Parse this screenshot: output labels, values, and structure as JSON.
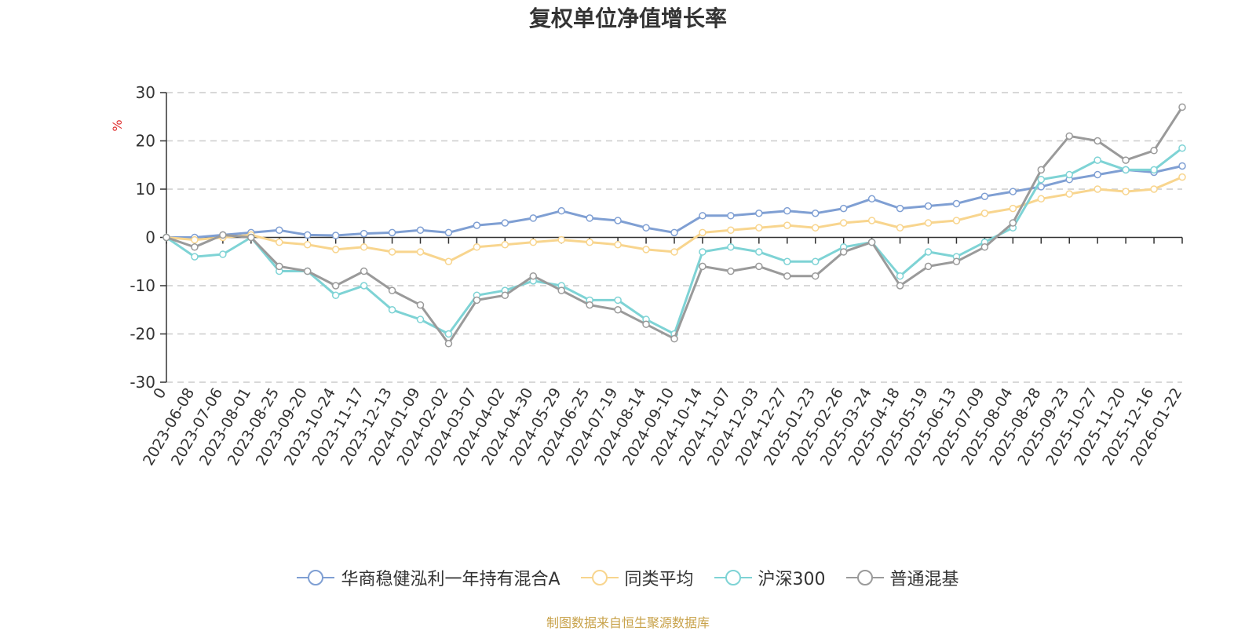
{
  "chart_data": {
    "type": "line",
    "title": "复权单位净值增长率",
    "ylabel": "%",
    "ylim": [
      -30,
      30
    ],
    "yticks": [
      30,
      20,
      10,
      0,
      -10,
      -20,
      -30
    ],
    "grid": true,
    "legend_position": "bottom",
    "source": "制图数据来自恒生聚源数据库",
    "x": [
      "0",
      "2023-06-08",
      "2023-07-06",
      "2023-08-01",
      "2023-08-25",
      "2023-09-20",
      "2023-10-24",
      "2023-11-17",
      "2023-12-13",
      "2024-01-09",
      "2024-02-02",
      "2024-03-07",
      "2024-04-02",
      "2024-04-30",
      "2024-05-29",
      "2024-06-25",
      "2024-07-19",
      "2024-08-14",
      "2024-09-10",
      "2024-10-14",
      "2024-11-07",
      "2024-12-03",
      "2024-12-27",
      "2025-01-23",
      "2025-02-26",
      "2025-03-24",
      "2025-04-18",
      "2025-05-19",
      "2025-06-13",
      "2025-07-09",
      "2025-08-04",
      "2025-08-28",
      "2025-09-23",
      "2025-10-27",
      "2025-11-20",
      "2025-12-16",
      "2026-01-22"
    ],
    "series": [
      {
        "name": "华商稳健泓利一年持有混合A",
        "color": "#7f9fd3",
        "values": [
          0,
          0,
          0.5,
          1,
          1.5,
          0.5,
          0.4,
          0.8,
          1,
          1.5,
          1,
          2.5,
          3,
          4,
          5.5,
          4,
          3.5,
          2,
          1,
          4.5,
          4.5,
          5,
          5.5,
          5,
          6,
          8,
          6,
          6.5,
          7,
          8.5,
          9.5,
          10.5,
          12,
          13,
          14,
          13.5,
          14.8
        ]
      },
      {
        "name": "同类平均",
        "color": "#f8d58e",
        "values": [
          0,
          -0.5,
          0,
          0.5,
          -1,
          -1.5,
          -2.5,
          -2,
          -3,
          -3,
          -5,
          -2,
          -1.5,
          -1,
          -0.5,
          -1,
          -1.5,
          -2.5,
          -3,
          1,
          1.5,
          2,
          2.5,
          2,
          3,
          3.5,
          2,
          3,
          3.5,
          5,
          6,
          8,
          9,
          10,
          9.5,
          10,
          12.5
        ]
      },
      {
        "name": "沪深300",
        "color": "#7ed3d5",
        "values": [
          0,
          -4,
          -3.5,
          0,
          -7,
          -7,
          -12,
          -10,
          -15,
          -17,
          -20,
          -12,
          -11,
          -9,
          -10,
          -13,
          -13,
          -17,
          -20,
          -3,
          -2,
          -3,
          -5,
          -5,
          -2,
          -1,
          -8,
          -3,
          -4,
          -1,
          2,
          12,
          13,
          16,
          14,
          14,
          18.5
        ]
      },
      {
        "name": "普通混基",
        "color": "#9a9a9a",
        "values": [
          0,
          -2,
          0.5,
          0,
          -6,
          -7,
          -10,
          -7,
          -11,
          -14,
          -22,
          -13,
          -12,
          -8,
          -11,
          -14,
          -15,
          -18,
          -21,
          -6,
          -7,
          -6,
          -8,
          -8,
          -3,
          -1,
          -10,
          -6,
          -5,
          -2,
          3,
          14,
          21,
          20,
          16,
          18,
          27
        ]
      }
    ]
  }
}
